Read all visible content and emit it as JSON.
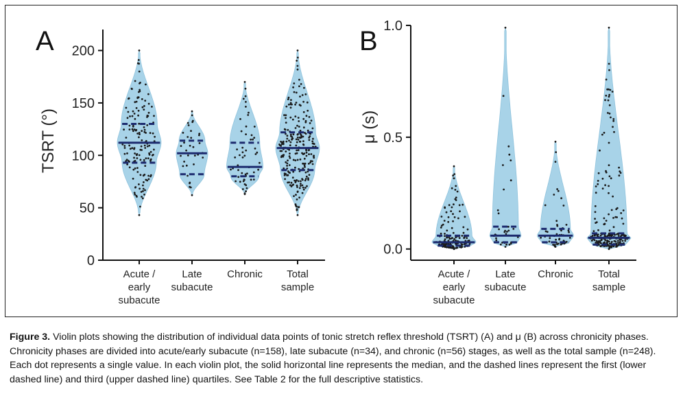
{
  "chart_data": [
    {
      "type": "violin",
      "panel_label": "A",
      "title": "",
      "xlabel": "",
      "ylabel": "TSRT (°)",
      "ylim": [
        0,
        220
      ],
      "yticks": [
        "0",
        "50",
        "100",
        "150",
        "200"
      ],
      "categories": [
        "Acute / early subacute",
        "Late subacute",
        "Chronic",
        "Total sample"
      ],
      "category_lines": [
        [
          "Acute /",
          "early",
          "subacute"
        ],
        [
          "Late",
          "subacute"
        ],
        [
          "Chronic"
        ],
        [
          "Total",
          "sample"
        ]
      ],
      "violin_color": "#a8d3e8",
      "median_color": "#1c2a6e",
      "series": [
        {
          "name": "Acute / early subacute",
          "n": 158,
          "min": 43,
          "max": 200,
          "q1": 93,
          "median": 112,
          "q3": 130
        },
        {
          "name": "Late subacute",
          "n": 34,
          "min": 62,
          "max": 142,
          "q1": 82,
          "median": 102,
          "q3": 114
        },
        {
          "name": "Chronic",
          "n": 56,
          "min": 63,
          "max": 170,
          "q1": 80,
          "median": 89,
          "q3": 112
        },
        {
          "name": "Total sample",
          "n": 248,
          "min": 43,
          "max": 200,
          "q1": 86,
          "median": 107,
          "q3": 122
        }
      ]
    },
    {
      "type": "violin",
      "panel_label": "B",
      "title": "",
      "xlabel": "",
      "ylabel": "μ (s)",
      "ylim": [
        -0.05,
        1.0
      ],
      "yticks": [
        "0.0",
        "0.5",
        "1.0"
      ],
      "categories": [
        "Acute / early subacute",
        "Late subacute",
        "Chronic",
        "Total sample"
      ],
      "category_lines": [
        [
          "Acute /",
          "early",
          "subacute"
        ],
        [
          "Late",
          "subacute"
        ],
        [
          "Chronic"
        ],
        [
          "Total",
          "sample"
        ]
      ],
      "violin_color": "#a8d3e8",
      "median_color": "#1c2a6e",
      "series": [
        {
          "name": "Acute / early subacute",
          "n": 158,
          "min": 0.0,
          "max": 0.37,
          "q1": 0.015,
          "median": 0.03,
          "q3": 0.06
        },
        {
          "name": "Late subacute",
          "n": 34,
          "min": 0.01,
          "max": 0.99,
          "q1": 0.03,
          "median": 0.06,
          "q3": 0.1
        },
        {
          "name": "Chronic",
          "n": 56,
          "min": 0.01,
          "max": 0.48,
          "q1": 0.03,
          "median": 0.06,
          "q3": 0.09
        },
        {
          "name": "Total sample",
          "n": 248,
          "min": 0.0,
          "max": 0.99,
          "q1": 0.02,
          "median": 0.05,
          "q3": 0.07
        }
      ]
    }
  ],
  "caption": {
    "label": "Figure 3.",
    "text": "Violin plots showing the distribution of individual data points of tonic stretch reflex threshold (TSRT) (A) and μ (B) across chronicity phases. Chronicity phases are divided into acute/early subacute (n=158), late subacute (n=34), and chronic (n=56) stages, as well as the total sample (n=248). Each dot represents a single value. In each violin plot, the solid horizontal line represents the median, and the dashed lines represent the first (lower dashed line) and third (upper dashed line) quartiles. See Table 2 for the full descriptive statistics."
  }
}
